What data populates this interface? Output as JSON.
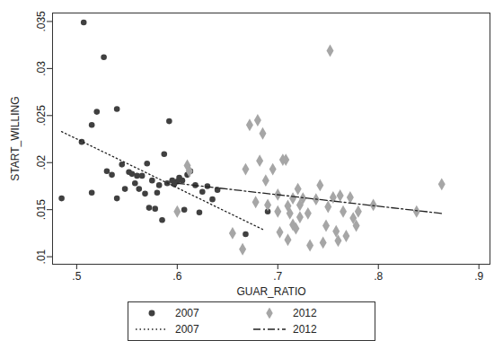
{
  "chart_data": {
    "type": "scatter",
    "x_label": "GUAR_RATIO",
    "y_label": "START_WILLING",
    "xlim": [
      0.476,
      0.911
    ],
    "ylim": [
      0.0092,
      0.0359
    ],
    "xticks": [
      {
        "value": 0.5,
        "label": ".5"
      },
      {
        "value": 0.6,
        "label": ".6"
      },
      {
        "value": 0.7,
        "label": ".7"
      },
      {
        "value": 0.8,
        "label": ".8"
      },
      {
        "value": 0.9,
        "label": ".9"
      }
    ],
    "yticks": [
      {
        "value": 0.01,
        "label": ".01"
      },
      {
        "value": 0.015,
        "label": ".015"
      },
      {
        "value": 0.02,
        "label": ".02"
      },
      {
        "value": 0.025,
        "label": ".025"
      },
      {
        "value": 0.03,
        "label": ".03"
      },
      {
        "value": 0.035,
        "label": ".035"
      }
    ],
    "legend": "bottom",
    "series": [
      {
        "name": "2007",
        "type": "scatter",
        "marker": "circle",
        "color": "#404040",
        "x": [
          0.485,
          0.507,
          0.505,
          0.515,
          0.515,
          0.52,
          0.527,
          0.53,
          0.535,
          0.54,
          0.54,
          0.545,
          0.548,
          0.552,
          0.555,
          0.558,
          0.56,
          0.562,
          0.565,
          0.568,
          0.57,
          0.572,
          0.575,
          0.578,
          0.58,
          0.582,
          0.585,
          0.587,
          0.59,
          0.592,
          0.595,
          0.597,
          0.6,
          0.602,
          0.605,
          0.607,
          0.61,
          0.613,
          0.618,
          0.622,
          0.625,
          0.63,
          0.635,
          0.64,
          0.668,
          0.69
        ],
        "values": [
          0.0162,
          0.0349,
          0.0222,
          0.0168,
          0.024,
          0.0254,
          0.0312,
          0.0191,
          0.0187,
          0.0257,
          0.0162,
          0.0198,
          0.0172,
          0.019,
          0.0188,
          0.0178,
          0.0186,
          0.0172,
          0.0186,
          0.0167,
          0.0199,
          0.0152,
          0.0181,
          0.0151,
          0.0168,
          0.0176,
          0.0139,
          0.0209,
          0.0178,
          0.0244,
          0.0181,
          0.0177,
          0.018,
          0.0184,
          0.0181,
          0.015,
          0.0187,
          0.0191,
          0.0176,
          0.0147,
          0.0169,
          0.0175,
          0.0161,
          0.0171,
          0.0124,
          0.0148
        ]
      },
      {
        "name": "2012",
        "type": "scatter",
        "marker": "diamond",
        "color": "#a6a6a6",
        "x": [
          0.6,
          0.61,
          0.612,
          0.655,
          0.665,
          0.668,
          0.672,
          0.678,
          0.68,
          0.682,
          0.685,
          0.688,
          0.69,
          0.695,
          0.7,
          0.702,
          0.705,
          0.708,
          0.71,
          0.712,
          0.715,
          0.715,
          0.718,
          0.72,
          0.722,
          0.725,
          0.73,
          0.732,
          0.738,
          0.742,
          0.745,
          0.748,
          0.75,
          0.752,
          0.755,
          0.758,
          0.76,
          0.762,
          0.765,
          0.768,
          0.772,
          0.775,
          0.778,
          0.78,
          0.795,
          0.838,
          0.863,
          0.71,
          0.7,
          0.722
        ],
        "values": [
          0.0148,
          0.0197,
          0.0191,
          0.0125,
          0.0108,
          0.0193,
          0.024,
          0.0158,
          0.0245,
          0.0202,
          0.0231,
          0.0181,
          0.0155,
          0.0193,
          0.0166,
          0.0126,
          0.0203,
          0.0203,
          0.0154,
          0.0146,
          0.0162,
          0.0134,
          0.013,
          0.0172,
          0.0142,
          0.0162,
          0.0146,
          0.0112,
          0.0161,
          0.0176,
          0.0115,
          0.0133,
          0.0153,
          0.0319,
          0.0163,
          0.0127,
          0.0117,
          0.0165,
          0.0148,
          0.0122,
          0.0163,
          0.0141,
          0.0133,
          0.0148,
          0.0155,
          0.0148,
          0.0177,
          0.0118,
          0.0148,
          0.0155
        ]
      },
      {
        "name": "2007",
        "type": "line",
        "line_style": "dotted",
        "color": "#222222",
        "x": [
          0.485,
          0.685
        ],
        "values": [
          0.0233,
          0.0129
        ]
      },
      {
        "name": "2012",
        "type": "line",
        "line_style": "dashdot",
        "color": "#222222",
        "x": [
          0.6,
          0.863
        ],
        "values": [
          0.0178,
          0.0146
        ]
      }
    ]
  }
}
